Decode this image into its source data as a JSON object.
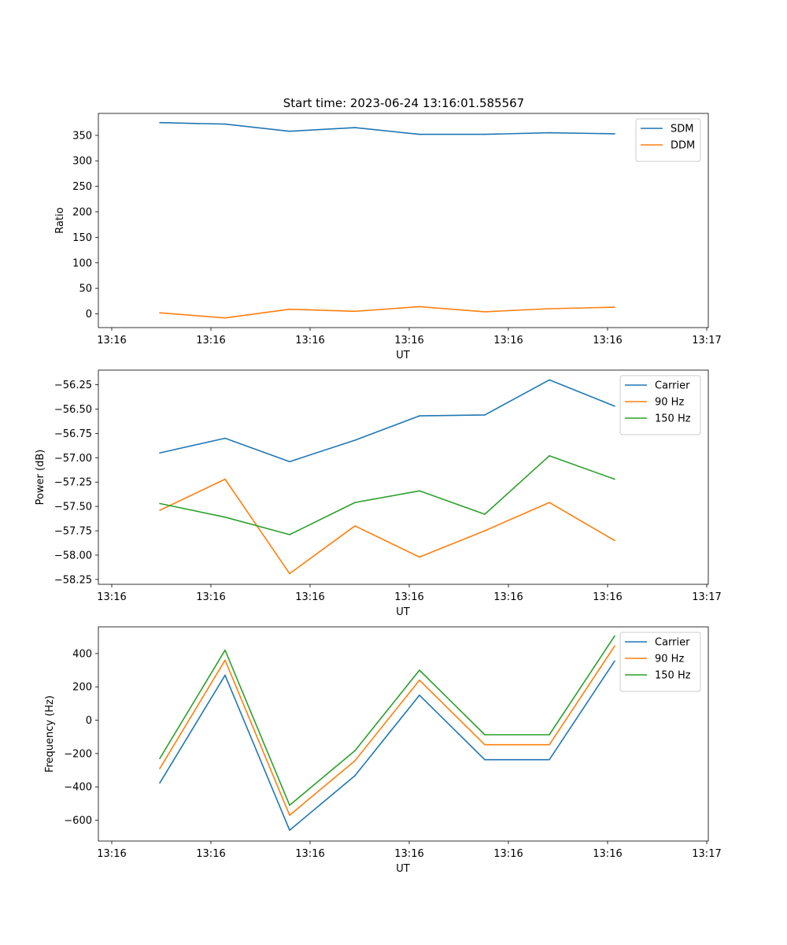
{
  "title": "Start time: 2023-06-24 13:16:01.585567",
  "colors": {
    "blue": "#1f77b4",
    "orange": "#ff7f0e",
    "green": "#2ca02c"
  },
  "chart_data": [
    {
      "type": "line",
      "xlabel": "UT",
      "ylabel": "Ratio",
      "x_ticks": [
        "13:16",
        "13:16",
        "13:16",
        "13:16",
        "13:16",
        "13:16",
        "13:17"
      ],
      "ylim": [
        -27,
        393
      ],
      "y_ticks": [
        0,
        50,
        100,
        150,
        200,
        250,
        300,
        350
      ],
      "legend_position": "top-right",
      "grid": false,
      "series": [
        {
          "name": "SDM",
          "color": "#1f77b4",
          "values": [
            375,
            372,
            358,
            365,
            352,
            352,
            355,
            353
          ]
        },
        {
          "name": "DDM",
          "color": "#ff7f0e",
          "values": [
            2,
            -8,
            9,
            5,
            14,
            4,
            10,
            13
          ]
        }
      ]
    },
    {
      "type": "line",
      "xlabel": "UT",
      "ylabel": "Power (dB)",
      "x_ticks": [
        "13:16",
        "13:16",
        "13:16",
        "13:16",
        "13:16",
        "13:16",
        "13:17"
      ],
      "ylim": [
        -58.3,
        -56.1
      ],
      "y_ticks": [
        "-56.25",
        "-56.50",
        "-56.75",
        "-57.00",
        "-57.25",
        "-57.50",
        "-57.75",
        "-58.00",
        "-58.25"
      ],
      "legend_position": "top-right",
      "grid": false,
      "series": [
        {
          "name": "Carrier",
          "color": "#1f77b4",
          "values": [
            -56.95,
            -56.8,
            -57.04,
            -56.82,
            -56.57,
            -56.56,
            -56.2,
            -56.47
          ]
        },
        {
          "name": "90 Hz",
          "color": "#ff7f0e",
          "values": [
            -57.54,
            -57.22,
            -58.19,
            -57.7,
            -58.02,
            -57.75,
            -57.46,
            -57.85
          ]
        },
        {
          "name": "150 Hz",
          "color": "#2ca02c",
          "values": [
            -57.47,
            -57.61,
            -57.79,
            -57.46,
            -57.34,
            -57.58,
            -56.98,
            -57.22
          ]
        }
      ]
    },
    {
      "type": "line",
      "xlabel": "UT",
      "ylabel": "Frequency (Hz)",
      "x_ticks": [
        "13:16",
        "13:16",
        "13:16",
        "13:16",
        "13:16",
        "13:16",
        "13:17"
      ],
      "ylim": [
        -725,
        560
      ],
      "y_ticks": [
        -600,
        -400,
        -200,
        0,
        200,
        400
      ],
      "legend_position": "top-right",
      "grid": false,
      "series": [
        {
          "name": "Carrier",
          "color": "#1f77b4",
          "values": [
            -377,
            270,
            -660,
            -333,
            150,
            -237,
            -237,
            355
          ]
        },
        {
          "name": "90 Hz",
          "color": "#ff7f0e",
          "values": [
            -290,
            360,
            -570,
            -243,
            240,
            -147,
            -147,
            445
          ]
        },
        {
          "name": "150 Hz",
          "color": "#2ca02c",
          "values": [
            -230,
            420,
            -510,
            -183,
            300,
            -87,
            -87,
            505
          ]
        }
      ]
    }
  ]
}
